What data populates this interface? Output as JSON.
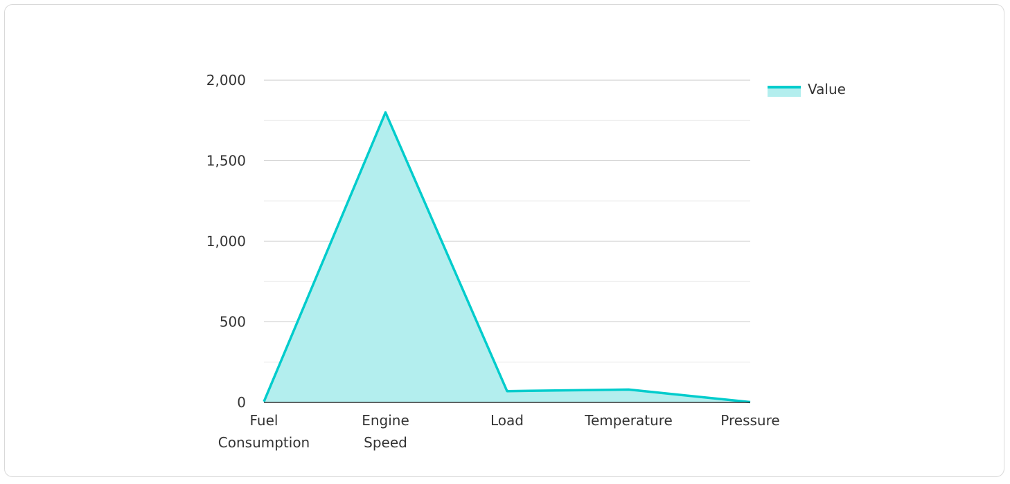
{
  "chart_data": {
    "type": "area",
    "categories": [
      [
        "Fuel",
        "Consumption"
      ],
      [
        "Engine",
        "Speed"
      ],
      [
        "Load"
      ],
      [
        "Temperature"
      ],
      [
        "Pressure"
      ]
    ],
    "series": [
      {
        "name": "Value",
        "values": [
          5,
          1800,
          70,
          80,
          2
        ],
        "color": "#00cccc",
        "fill": "#b3eeee"
      }
    ],
    "y_ticks": [
      "0",
      "500",
      "1,000",
      "1,500",
      "2,000"
    ],
    "ylim": [
      0,
      2000
    ],
    "grid": true,
    "legend_position": "top-right",
    "colors": {
      "major_grid": "#c8c8c8",
      "minor_grid": "#e8e8e8",
      "axis": "#333333"
    }
  }
}
